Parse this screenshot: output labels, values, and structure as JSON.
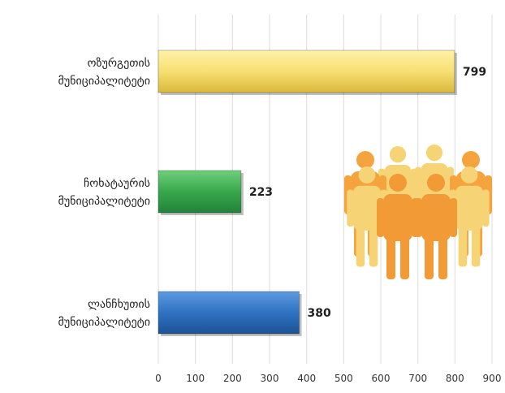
{
  "chart_data": {
    "type": "bar",
    "orientation": "horizontal",
    "categories": [
      [
        "ოზურგეთის",
        "მუნიციპალიტეტი"
      ],
      [
        "ჩოხატაურის",
        "მუნიციპალიტეტი"
      ],
      [
        "ლანჩხუთის",
        "მუნიციპალიტეტი"
      ]
    ],
    "values": [
      799,
      223,
      380
    ],
    "colors": [
      "#f7df72",
      "#38a84c",
      "#2f72c2"
    ],
    "xlim": [
      0,
      900
    ],
    "xticks": [
      0,
      100,
      200,
      300,
      400,
      500,
      600,
      700,
      800,
      900
    ],
    "grid": true,
    "decoration": "people-icons"
  }
}
